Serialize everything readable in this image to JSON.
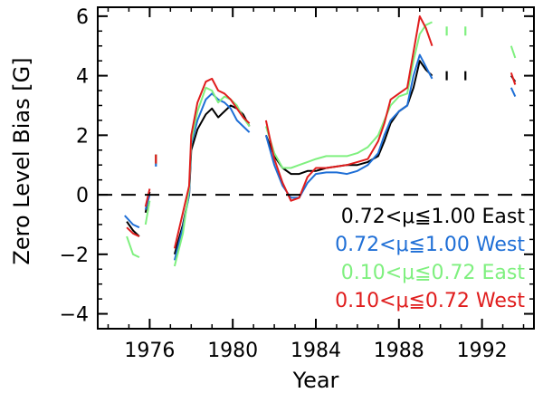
{
  "chart_data": {
    "type": "line",
    "xlabel": "Year",
    "ylabel": "Zero Level Bias [G]",
    "xlim": [
      1973.5,
      1994.5
    ],
    "ylim": [
      -4.5,
      6.3
    ],
    "x_ticks": [
      1976,
      1980,
      1984,
      1988,
      1992
    ],
    "x_tick_labels": [
      "1976",
      "1980",
      "1984",
      "1988",
      "1992"
    ],
    "y_ticks": [
      -4,
      -2,
      0,
      2,
      4,
      6
    ],
    "y_tick_labels": [
      "−4",
      "−2",
      "0",
      "2",
      "4",
      "6"
    ],
    "reference_line": {
      "y": 0,
      "style": "dashed",
      "color": "#000000"
    },
    "grid": false,
    "legend_placement": "bottom-right",
    "series": [
      {
        "name": "0.72<μ≦1.00 East",
        "color": "#000000",
        "segments": [
          [
            [
              1974.9,
              -0.9
            ],
            [
              1975.2,
              -1.2
            ],
            [
              1975.5,
              -1.4
            ]
          ],
          [
            [
              1975.8,
              -0.6
            ],
            [
              1976.0,
              0.1
            ]
          ],
          [
            [
              1976.3,
              1.2
            ]
          ],
          [
            [
              1977.2,
              -2.0
            ],
            [
              1977.6,
              -1.0
            ],
            [
              1977.9,
              0.0
            ],
            [
              1978.0,
              1.5
            ],
            [
              1978.3,
              2.2
            ],
            [
              1978.7,
              2.7
            ],
            [
              1979.0,
              2.9
            ],
            [
              1979.3,
              2.6
            ],
            [
              1979.6,
              2.8
            ],
            [
              1979.9,
              3.0
            ],
            [
              1980.2,
              2.9
            ],
            [
              1980.5,
              2.7
            ],
            [
              1980.8,
              2.3
            ]
          ],
          [
            [
              1981.6,
              2.0
            ],
            [
              1982.0,
              1.3
            ],
            [
              1982.4,
              0.9
            ],
            [
              1982.8,
              0.7
            ],
            [
              1983.2,
              0.7
            ],
            [
              1983.6,
              0.8
            ],
            [
              1984.0,
              0.8
            ],
            [
              1984.5,
              0.9
            ],
            [
              1985.0,
              0.95
            ],
            [
              1985.5,
              1.0
            ],
            [
              1986.0,
              1.0
            ],
            [
              1986.5,
              1.1
            ],
            [
              1987.0,
              1.3
            ],
            [
              1987.3,
              1.8
            ],
            [
              1987.6,
              2.4
            ],
            [
              1988.0,
              2.8
            ],
            [
              1988.4,
              3.0
            ],
            [
              1988.7,
              3.6
            ],
            [
              1989.0,
              4.5
            ],
            [
              1989.3,
              4.2
            ],
            [
              1989.6,
              4.0
            ]
          ],
          [
            [
              1990.3,
              4.0
            ]
          ],
          [
            [
              1991.2,
              4.0
            ]
          ],
          [
            [
              1993.4,
              4.0
            ],
            [
              1993.6,
              3.8
            ]
          ]
        ]
      },
      {
        "name": "0.72<μ≦1.00 West",
        "color": "#1f6fd6",
        "segments": [
          [
            [
              1974.8,
              -0.7
            ],
            [
              1975.2,
              -1.0
            ],
            [
              1975.5,
              -1.1
            ]
          ],
          [
            [
              1975.8,
              -0.5
            ],
            [
              1976.0,
              0.0
            ]
          ],
          [
            [
              1976.3,
              1.1
            ]
          ],
          [
            [
              1977.2,
              -2.2
            ],
            [
              1977.6,
              -1.1
            ],
            [
              1977.9,
              0.0
            ],
            [
              1978.0,
              1.7
            ],
            [
              1978.3,
              2.5
            ],
            [
              1978.7,
              3.2
            ],
            [
              1979.0,
              3.4
            ],
            [
              1979.3,
              3.2
            ],
            [
              1979.6,
              3.1
            ],
            [
              1979.9,
              2.9
            ],
            [
              1980.2,
              2.5
            ],
            [
              1980.5,
              2.3
            ],
            [
              1980.8,
              2.1
            ]
          ],
          [
            [
              1981.6,
              2.0
            ],
            [
              1982.0,
              1.0
            ],
            [
              1982.4,
              0.3
            ],
            [
              1982.8,
              -0.1
            ],
            [
              1983.2,
              -0.1
            ],
            [
              1983.6,
              0.4
            ],
            [
              1984.0,
              0.7
            ],
            [
              1984.5,
              0.75
            ],
            [
              1985.0,
              0.75
            ],
            [
              1985.5,
              0.7
            ],
            [
              1986.0,
              0.8
            ],
            [
              1986.5,
              1.0
            ],
            [
              1987.0,
              1.4
            ],
            [
              1987.3,
              2.0
            ],
            [
              1987.6,
              2.5
            ],
            [
              1988.0,
              2.8
            ],
            [
              1988.4,
              3.0
            ],
            [
              1988.7,
              4.0
            ],
            [
              1989.0,
              4.7
            ],
            [
              1989.3,
              4.3
            ],
            [
              1989.6,
              3.9
            ]
          ],
          [
            [
              1993.4,
              3.6
            ],
            [
              1993.6,
              3.3
            ]
          ]
        ]
      },
      {
        "name": "0.10<μ≦0.72 East",
        "color": "#7ff07f",
        "segments": [
          [
            [
              1974.9,
              -1.4
            ],
            [
              1975.2,
              -2.0
            ],
            [
              1975.5,
              -2.1
            ]
          ],
          [
            [
              1975.8,
              -1.0
            ],
            [
              1976.0,
              -0.2
            ]
          ],
          [
            [
              1976.3,
              1.2
            ]
          ],
          [
            [
              1977.2,
              -2.4
            ],
            [
              1977.6,
              -1.3
            ],
            [
              1977.9,
              0.2
            ],
            [
              1978.0,
              1.8
            ],
            [
              1978.3,
              2.8
            ],
            [
              1978.7,
              3.6
            ],
            [
              1979.0,
              3.5
            ],
            [
              1979.3,
              3.1
            ],
            [
              1979.6,
              3.3
            ],
            [
              1979.9,
              3.2
            ],
            [
              1980.2,
              3.0
            ],
            [
              1980.5,
              2.6
            ],
            [
              1980.8,
              2.3
            ]
          ],
          [
            [
              1981.6,
              2.3
            ],
            [
              1982.0,
              1.4
            ],
            [
              1982.4,
              0.9
            ],
            [
              1982.8,
              0.9
            ],
            [
              1983.2,
              1.0
            ],
            [
              1983.6,
              1.1
            ],
            [
              1984.0,
              1.2
            ],
            [
              1984.5,
              1.3
            ],
            [
              1985.0,
              1.3
            ],
            [
              1985.5,
              1.3
            ],
            [
              1986.0,
              1.4
            ],
            [
              1986.5,
              1.6
            ],
            [
              1987.0,
              2.0
            ],
            [
              1987.3,
              2.5
            ],
            [
              1987.6,
              3.0
            ],
            [
              1988.0,
              3.3
            ],
            [
              1988.4,
              3.4
            ],
            [
              1988.7,
              4.5
            ],
            [
              1989.0,
              5.4
            ],
            [
              1989.3,
              5.7
            ],
            [
              1989.6,
              5.8
            ]
          ],
          [
            [
              1990.3,
              5.5
            ]
          ],
          [
            [
              1991.2,
              5.5
            ]
          ],
          [
            [
              1993.4,
              5.0
            ],
            [
              1993.6,
              4.6
            ]
          ]
        ]
      },
      {
        "name": "0.10<μ≦0.72 West",
        "color": "#e01d1d",
        "segments": [
          [
            [
              1974.9,
              -1.1
            ],
            [
              1975.2,
              -1.3
            ],
            [
              1975.5,
              -1.4
            ]
          ],
          [
            [
              1975.8,
              -0.4
            ],
            [
              1976.0,
              0.2
            ]
          ],
          [
            [
              1976.3,
              1.2
            ]
          ],
          [
            [
              1977.2,
              -1.8
            ],
            [
              1977.6,
              -0.6
            ],
            [
              1977.9,
              0.3
            ],
            [
              1978.0,
              2.0
            ],
            [
              1978.3,
              3.1
            ],
            [
              1978.7,
              3.8
            ],
            [
              1979.0,
              3.9
            ],
            [
              1979.3,
              3.5
            ],
            [
              1979.6,
              3.4
            ],
            [
              1979.9,
              3.2
            ],
            [
              1980.2,
              2.9
            ],
            [
              1980.5,
              2.6
            ],
            [
              1980.8,
              2.4
            ]
          ],
          [
            [
              1981.6,
              2.5
            ],
            [
              1982.0,
              1.2
            ],
            [
              1982.4,
              0.4
            ],
            [
              1982.8,
              -0.2
            ],
            [
              1983.2,
              -0.1
            ],
            [
              1983.6,
              0.6
            ],
            [
              1984.0,
              0.9
            ],
            [
              1984.5,
              0.9
            ],
            [
              1985.0,
              0.95
            ],
            [
              1985.5,
              1.0
            ],
            [
              1986.0,
              1.1
            ],
            [
              1986.5,
              1.2
            ],
            [
              1987.0,
              1.8
            ],
            [
              1987.3,
              2.4
            ],
            [
              1987.6,
              3.2
            ],
            [
              1988.0,
              3.4
            ],
            [
              1988.4,
              3.6
            ],
            [
              1988.7,
              4.8
            ],
            [
              1989.0,
              6.0
            ],
            [
              1989.3,
              5.6
            ],
            [
              1989.6,
              5.0
            ]
          ],
          [
            [
              1993.4,
              4.1
            ],
            [
              1993.6,
              3.7
            ]
          ]
        ]
      }
    ]
  }
}
